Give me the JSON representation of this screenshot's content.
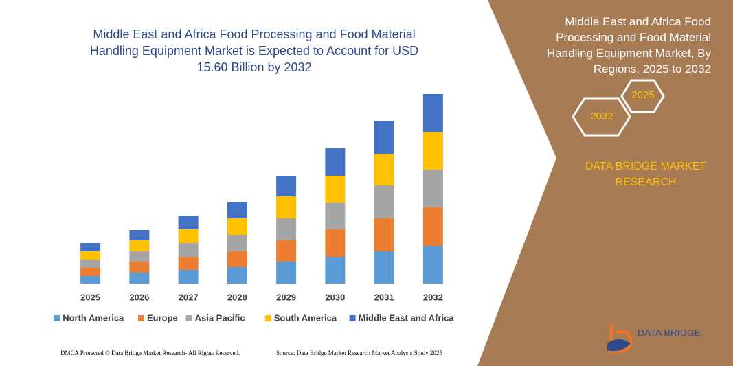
{
  "chart_data": {
    "type": "stacked_bar",
    "title": "Middle East and Africa Food Processing and Food Material Handling Equipment Market is Expected to Account for USD 15.60 Billion by 2032",
    "categories": [
      "2025",
      "2026",
      "2027",
      "2028",
      "2029",
      "2030",
      "2031",
      "2032"
    ],
    "series": [
      {
        "name": "North America",
        "color": "#5b9bd5",
        "values": [
          11,
          16,
          20,
          24,
          32,
          39,
          47,
          55
        ]
      },
      {
        "name": "Europe",
        "color": "#ed7d31",
        "values": [
          12,
          16,
          19,
          23,
          31,
          40,
          48,
          56
        ]
      },
      {
        "name": "Asia Pacific",
        "color": "#a5a5a5",
        "values": [
          12,
          15,
          20,
          24,
          32,
          39,
          48,
          55
        ]
      },
      {
        "name": "South America",
        "color": "#ffc000",
        "values": [
          12,
          16,
          20,
          24,
          32,
          39,
          46,
          55
        ]
      },
      {
        "name": "Middle East and Africa",
        "color": "#4472c4",
        "values": [
          12,
          15,
          20,
          24,
          30,
          40,
          48,
          55
        ]
      }
    ],
    "ylim": [
      0,
      300
    ],
    "legend": "bottom"
  },
  "side_panel": {
    "title": "Middle East and Africa Food Processing and Food Material Handling Equipment Market, By Regions, 2025 to 2032",
    "hex_start": "2025",
    "hex_end": "2032",
    "brand": "DATA BRIDGE MARKET RESEARCH",
    "logo": "DATA BRIDGE"
  },
  "footer": {
    "left": "DMCA Protected © Data Bridge Market Research- All Rights Reserved.",
    "right": "Source: Data Bridge Market Research Market Analysis Study 2025"
  }
}
